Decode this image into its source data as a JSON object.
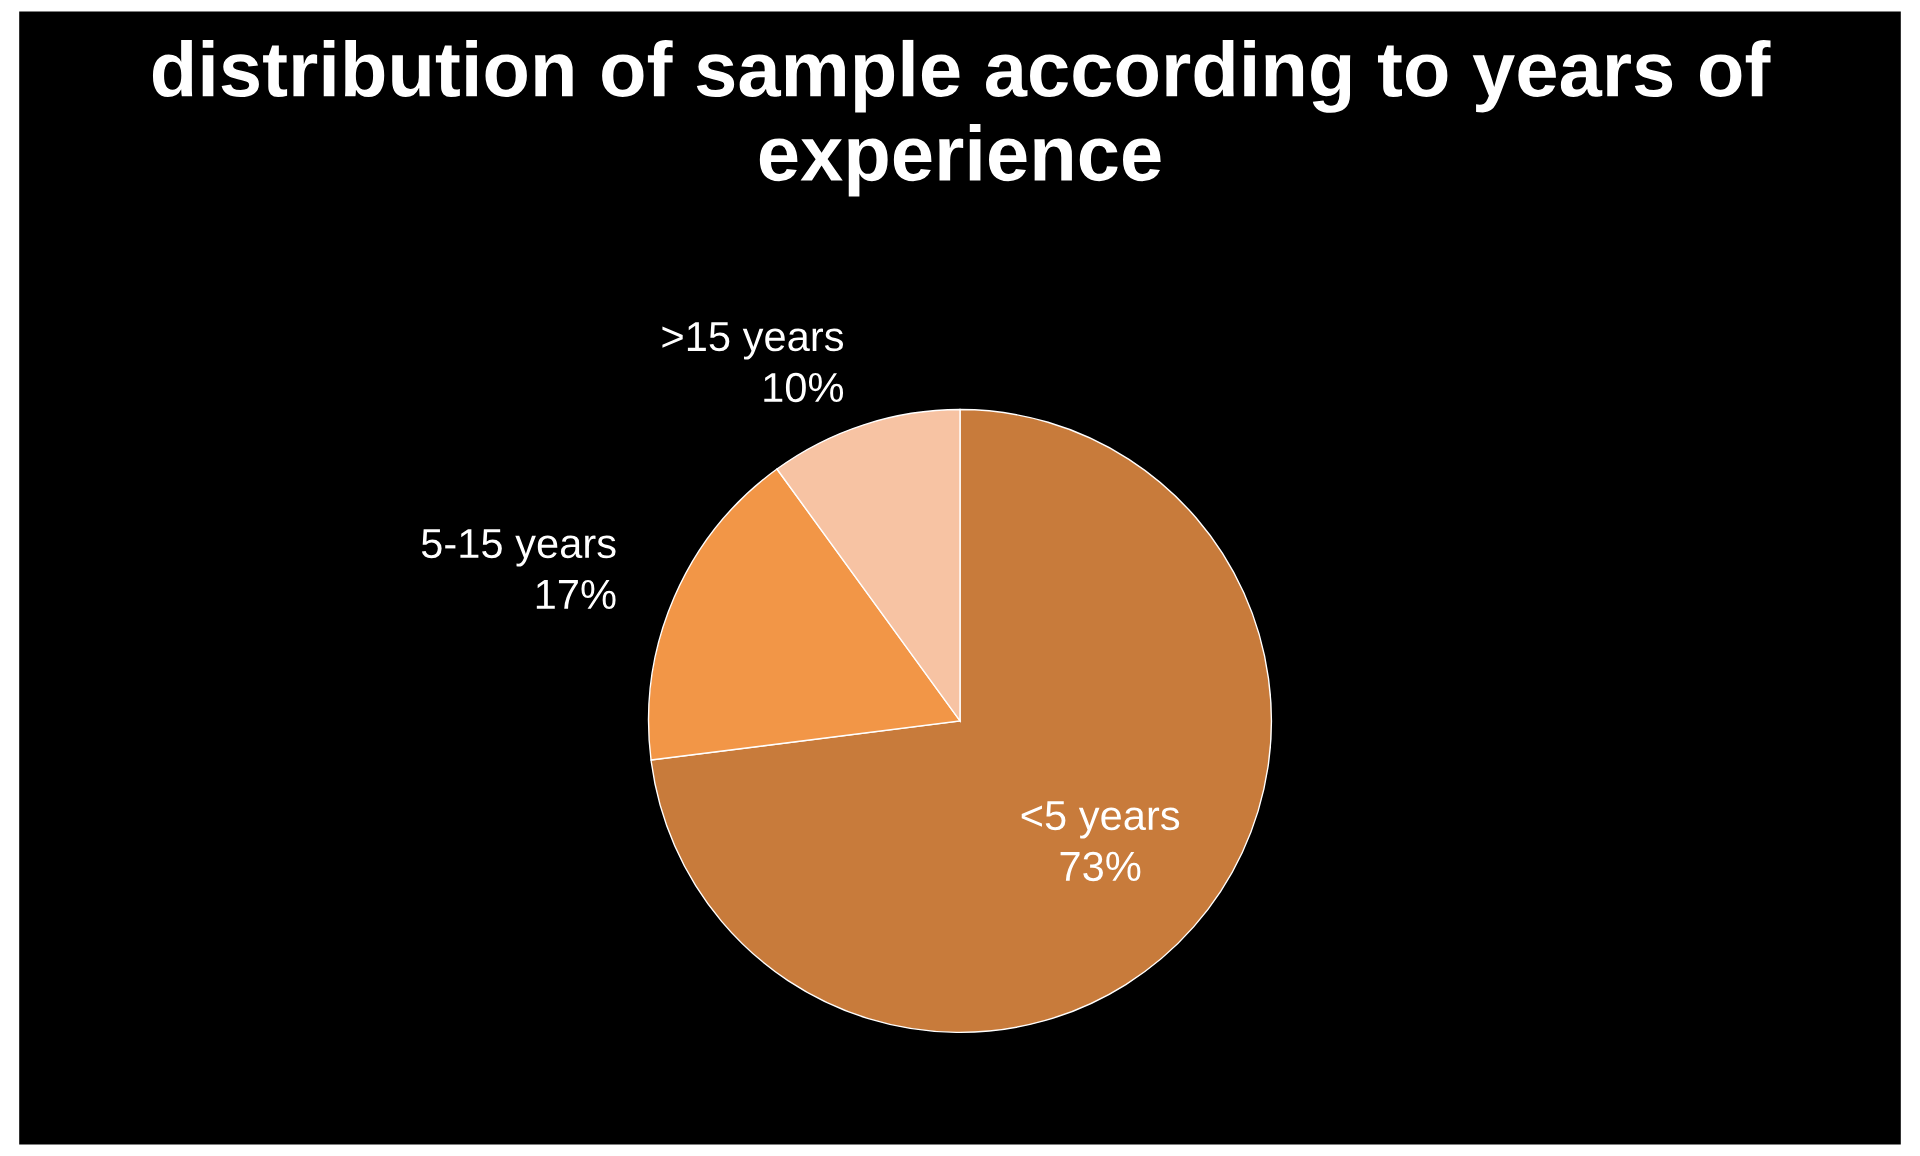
{
  "chart_data": {
    "type": "pie",
    "title": "distribution of sample according to years of experience",
    "categories": [
      "<5 years",
      "5-15 years",
      ">15 years"
    ],
    "values": [
      73,
      17,
      10
    ],
    "value_labels": [
      "73%",
      "17%",
      "10%"
    ],
    "colors": [
      "#c87b3b",
      "#f29647",
      "#f7c3a3"
    ],
    "legend": false
  }
}
